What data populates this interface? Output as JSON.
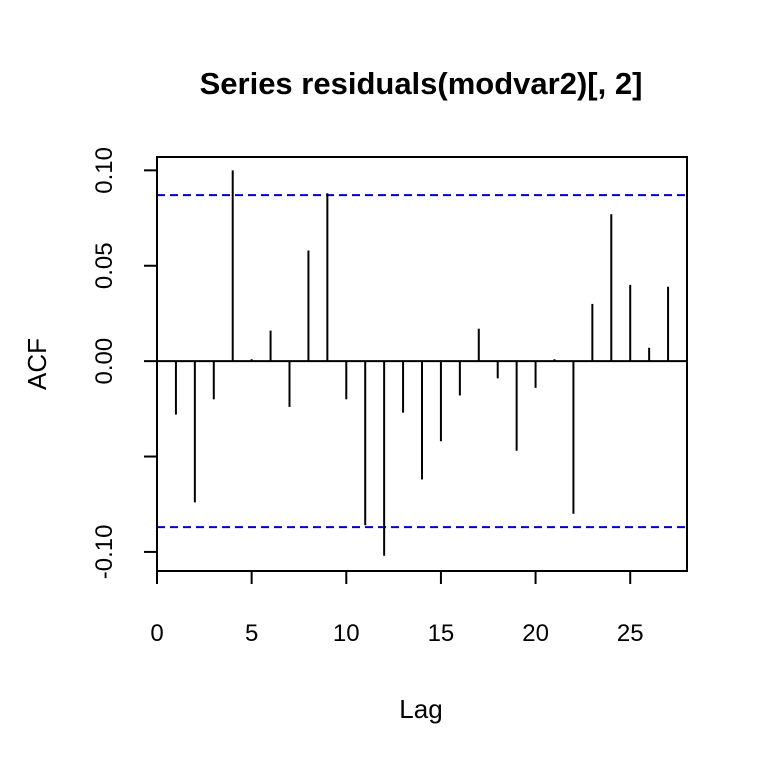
{
  "chart_data": {
    "type": "bar",
    "title": "Series residuals(modvar2)[, 2]",
    "xlabel": "Lag",
    "ylabel": "ACF",
    "xlim": [
      0,
      28
    ],
    "ylim": [
      -0.11,
      0.107
    ],
    "x_ticks": [
      0,
      5,
      10,
      15,
      20,
      25
    ],
    "x_tick_labels": [
      "0",
      "5",
      "10",
      "15",
      "20",
      "25"
    ],
    "y_ticks": [
      -0.1,
      -0.05,
      0.0,
      0.05,
      0.1
    ],
    "y_tick_labels": [
      "-0.10",
      "",
      "0.00",
      "0.05",
      "0.10"
    ],
    "confidence_bound": 0.087,
    "confidence_line_color": "#0000cc",
    "series_color": "#000000",
    "grid": false,
    "lags": [
      1,
      2,
      3,
      4,
      5,
      6,
      7,
      8,
      9,
      10,
      11,
      12,
      13,
      14,
      15,
      16,
      17,
      18,
      19,
      20,
      21,
      22,
      23,
      24,
      25,
      26,
      27
    ],
    "values": [
      -0.028,
      -0.074,
      -0.02,
      0.1,
      0.001,
      0.016,
      -0.024,
      0.058,
      0.088,
      -0.02,
      -0.086,
      -0.102,
      -0.027,
      -0.062,
      -0.042,
      -0.018,
      0.017,
      -0.009,
      -0.047,
      -0.014,
      0.001,
      -0.08,
      0.03,
      0.077,
      0.04,
      0.007,
      0.039
    ]
  }
}
